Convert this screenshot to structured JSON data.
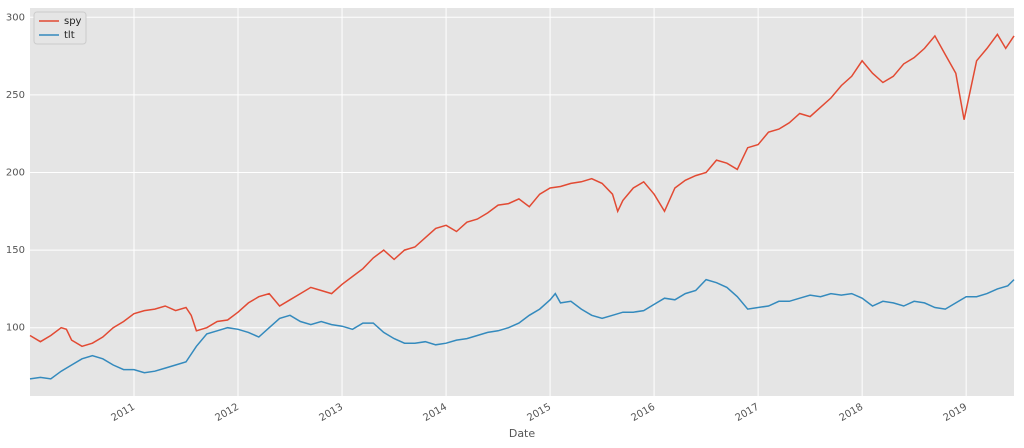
{
  "chart_data": {
    "type": "line",
    "x_label": "Date",
    "xlim": [
      2010.0,
      2019.46
    ],
    "xticks": [
      2011,
      2012,
      2013,
      2014,
      2015,
      2016,
      2017,
      2018,
      2019
    ],
    "ylim": [
      56,
      306
    ],
    "yticks": [
      100,
      150,
      200,
      250,
      300
    ],
    "grid": true,
    "legend": "upper left",
    "series": [
      {
        "name": "spy",
        "color": "#E24A33",
        "x": [
          2010.0,
          2010.1,
          2010.2,
          2010.3,
          2010.35,
          2010.4,
          2010.5,
          2010.6,
          2010.7,
          2010.8,
          2010.9,
          2011.0,
          2011.1,
          2011.2,
          2011.3,
          2011.4,
          2011.5,
          2011.55,
          2011.6,
          2011.7,
          2011.8,
          2011.9,
          2012.0,
          2012.1,
          2012.2,
          2012.3,
          2012.4,
          2012.5,
          2012.6,
          2012.7,
          2012.8,
          2012.9,
          2013.0,
          2013.1,
          2013.2,
          2013.3,
          2013.4,
          2013.5,
          2013.6,
          2013.7,
          2013.8,
          2013.9,
          2014.0,
          2014.1,
          2014.2,
          2014.3,
          2014.4,
          2014.5,
          2014.6,
          2014.7,
          2014.8,
          2014.9,
          2015.0,
          2015.1,
          2015.2,
          2015.3,
          2015.4,
          2015.5,
          2015.6,
          2015.65,
          2015.7,
          2015.8,
          2015.9,
          2016.0,
          2016.1,
          2016.2,
          2016.3,
          2016.4,
          2016.5,
          2016.6,
          2016.7,
          2016.8,
          2016.9,
          2017.0,
          2017.1,
          2017.2,
          2017.3,
          2017.4,
          2017.5,
          2017.6,
          2017.7,
          2017.8,
          2017.9,
          2018.0,
          2018.1,
          2018.2,
          2018.3,
          2018.4,
          2018.5,
          2018.6,
          2018.7,
          2018.8,
          2018.9,
          2018.98,
          2019.1,
          2019.2,
          2019.3,
          2019.38,
          2019.46
        ],
        "values": [
          95,
          91,
          95,
          100,
          99,
          92,
          88,
          90,
          94,
          100,
          104,
          109,
          111,
          112,
          114,
          111,
          113,
          108,
          98,
          100,
          104,
          105,
          110,
          116,
          120,
          122,
          114,
          118,
          122,
          126,
          124,
          122,
          128,
          133,
          138,
          145,
          150,
          144,
          150,
          152,
          158,
          164,
          166,
          162,
          168,
          170,
          174,
          179,
          180,
          183,
          178,
          186,
          190,
          191,
          193,
          194,
          196,
          193,
          186,
          175,
          182,
          190,
          194,
          186,
          175,
          190,
          195,
          198,
          200,
          208,
          206,
          202,
          216,
          218,
          226,
          228,
          232,
          238,
          236,
          242,
          248,
          256,
          262,
          272,
          264,
          258,
          262,
          270,
          274,
          280,
          288,
          276,
          264,
          234,
          272,
          280,
          289,
          280,
          288
        ]
      },
      {
        "name": "tlt",
        "color": "#348ABD",
        "x": [
          2010.0,
          2010.1,
          2010.2,
          2010.3,
          2010.4,
          2010.5,
          2010.6,
          2010.7,
          2010.8,
          2010.9,
          2011.0,
          2011.1,
          2011.2,
          2011.3,
          2011.4,
          2011.5,
          2011.6,
          2011.7,
          2011.8,
          2011.9,
          2012.0,
          2012.1,
          2012.2,
          2012.3,
          2012.4,
          2012.5,
          2012.6,
          2012.7,
          2012.8,
          2012.9,
          2013.0,
          2013.1,
          2013.2,
          2013.3,
          2013.4,
          2013.5,
          2013.6,
          2013.7,
          2013.8,
          2013.9,
          2014.0,
          2014.1,
          2014.2,
          2014.3,
          2014.4,
          2014.5,
          2014.6,
          2014.7,
          2014.8,
          2014.9,
          2015.0,
          2015.05,
          2015.1,
          2015.2,
          2015.3,
          2015.4,
          2015.5,
          2015.6,
          2015.7,
          2015.8,
          2015.9,
          2016.0,
          2016.1,
          2016.2,
          2016.3,
          2016.4,
          2016.5,
          2016.6,
          2016.7,
          2016.8,
          2016.9,
          2017.0,
          2017.1,
          2017.2,
          2017.3,
          2017.4,
          2017.5,
          2017.6,
          2017.7,
          2017.8,
          2017.9,
          2018.0,
          2018.1,
          2018.2,
          2018.3,
          2018.4,
          2018.5,
          2018.6,
          2018.7,
          2018.8,
          2018.9,
          2019.0,
          2019.1,
          2019.2,
          2019.3,
          2019.4,
          2019.46
        ],
        "values": [
          67,
          68,
          67,
          72,
          76,
          80,
          82,
          80,
          76,
          73,
          73,
          71,
          72,
          74,
          76,
          78,
          88,
          96,
          98,
          100,
          99,
          97,
          94,
          100,
          106,
          108,
          104,
          102,
          104,
          102,
          101,
          99,
          103,
          103,
          97,
          93,
          90,
          90,
          91,
          89,
          90,
          92,
          93,
          95,
          97,
          98,
          100,
          103,
          108,
          112,
          118,
          122,
          116,
          117,
          112,
          108,
          106,
          108,
          110,
          110,
          111,
          115,
          119,
          118,
          122,
          124,
          131,
          129,
          126,
          120,
          112,
          113,
          114,
          117,
          117,
          119,
          121,
          120,
          122,
          121,
          122,
          119,
          114,
          117,
          116,
          114,
          117,
          116,
          113,
          112,
          116,
          120,
          120,
          122,
          125,
          127,
          131
        ]
      }
    ]
  }
}
